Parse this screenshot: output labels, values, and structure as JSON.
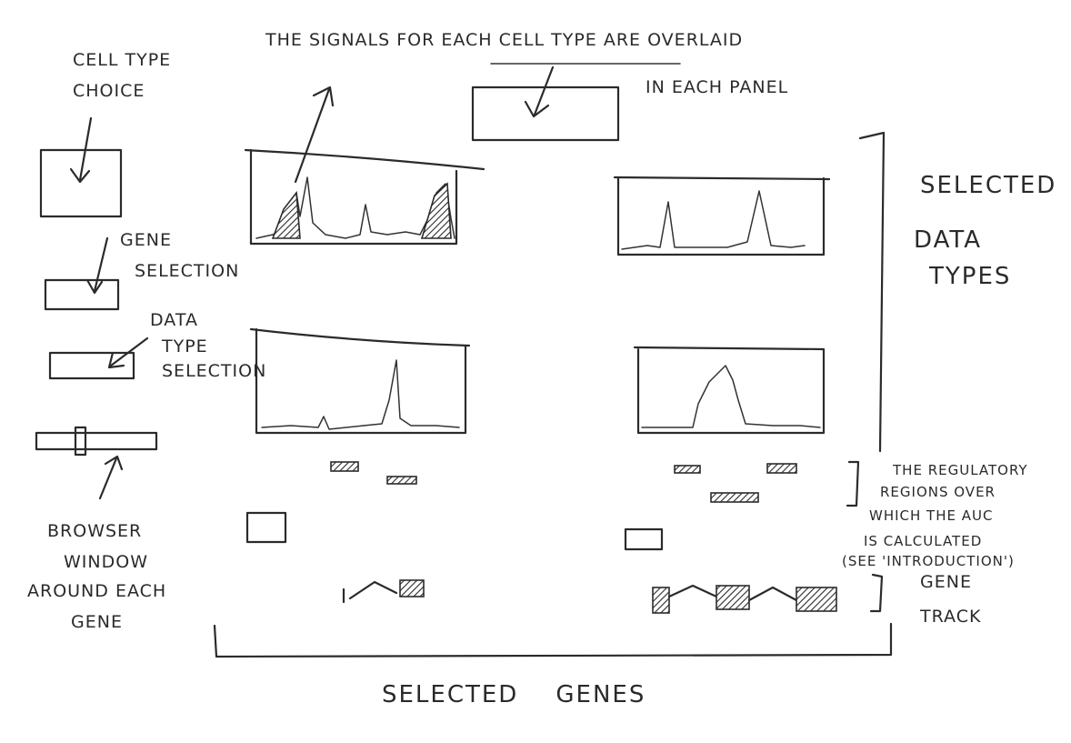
{
  "labels": {
    "top_line1_a": "THE SIGNALS FOR ",
    "top_line1_b": "EACH CELL TYPE",
    "top_line1_c": " ARE OVERLAID",
    "top_line2": "IN EACH PANEL",
    "cell_type_choice_1": "CELL TYPE",
    "cell_type_choice_2": "CHOICE",
    "gene_selection_1": "GENE",
    "gene_selection_2": "SELECTION",
    "data_type_selection_1": "DATA",
    "data_type_selection_2": "TYPE",
    "data_type_selection_3": "SELECTION",
    "browser_window_1": "BROWSER",
    "browser_window_2": "WINDOW",
    "browser_window_3": "AROUND EACH",
    "browser_window_4": "GENE",
    "selected_data_types_1": "SELECTED",
    "selected_data_types_2": "DATA",
    "selected_data_types_3": "TYPES",
    "regulatory_1": "THE REGULATORY",
    "regulatory_2": "REGIONS OVER",
    "regulatory_3": "WHICH THE AUC",
    "regulatory_4": "IS  CALCULATED",
    "regulatory_5": "(SEE 'INTRODUCTION')",
    "gene_track_1": "GENE",
    "gene_track_2": "TRACK",
    "selected_genes": "SELECTED    GENES"
  },
  "colors": {
    "ink": "#2b2b2b",
    "paper": "#ffffff"
  }
}
